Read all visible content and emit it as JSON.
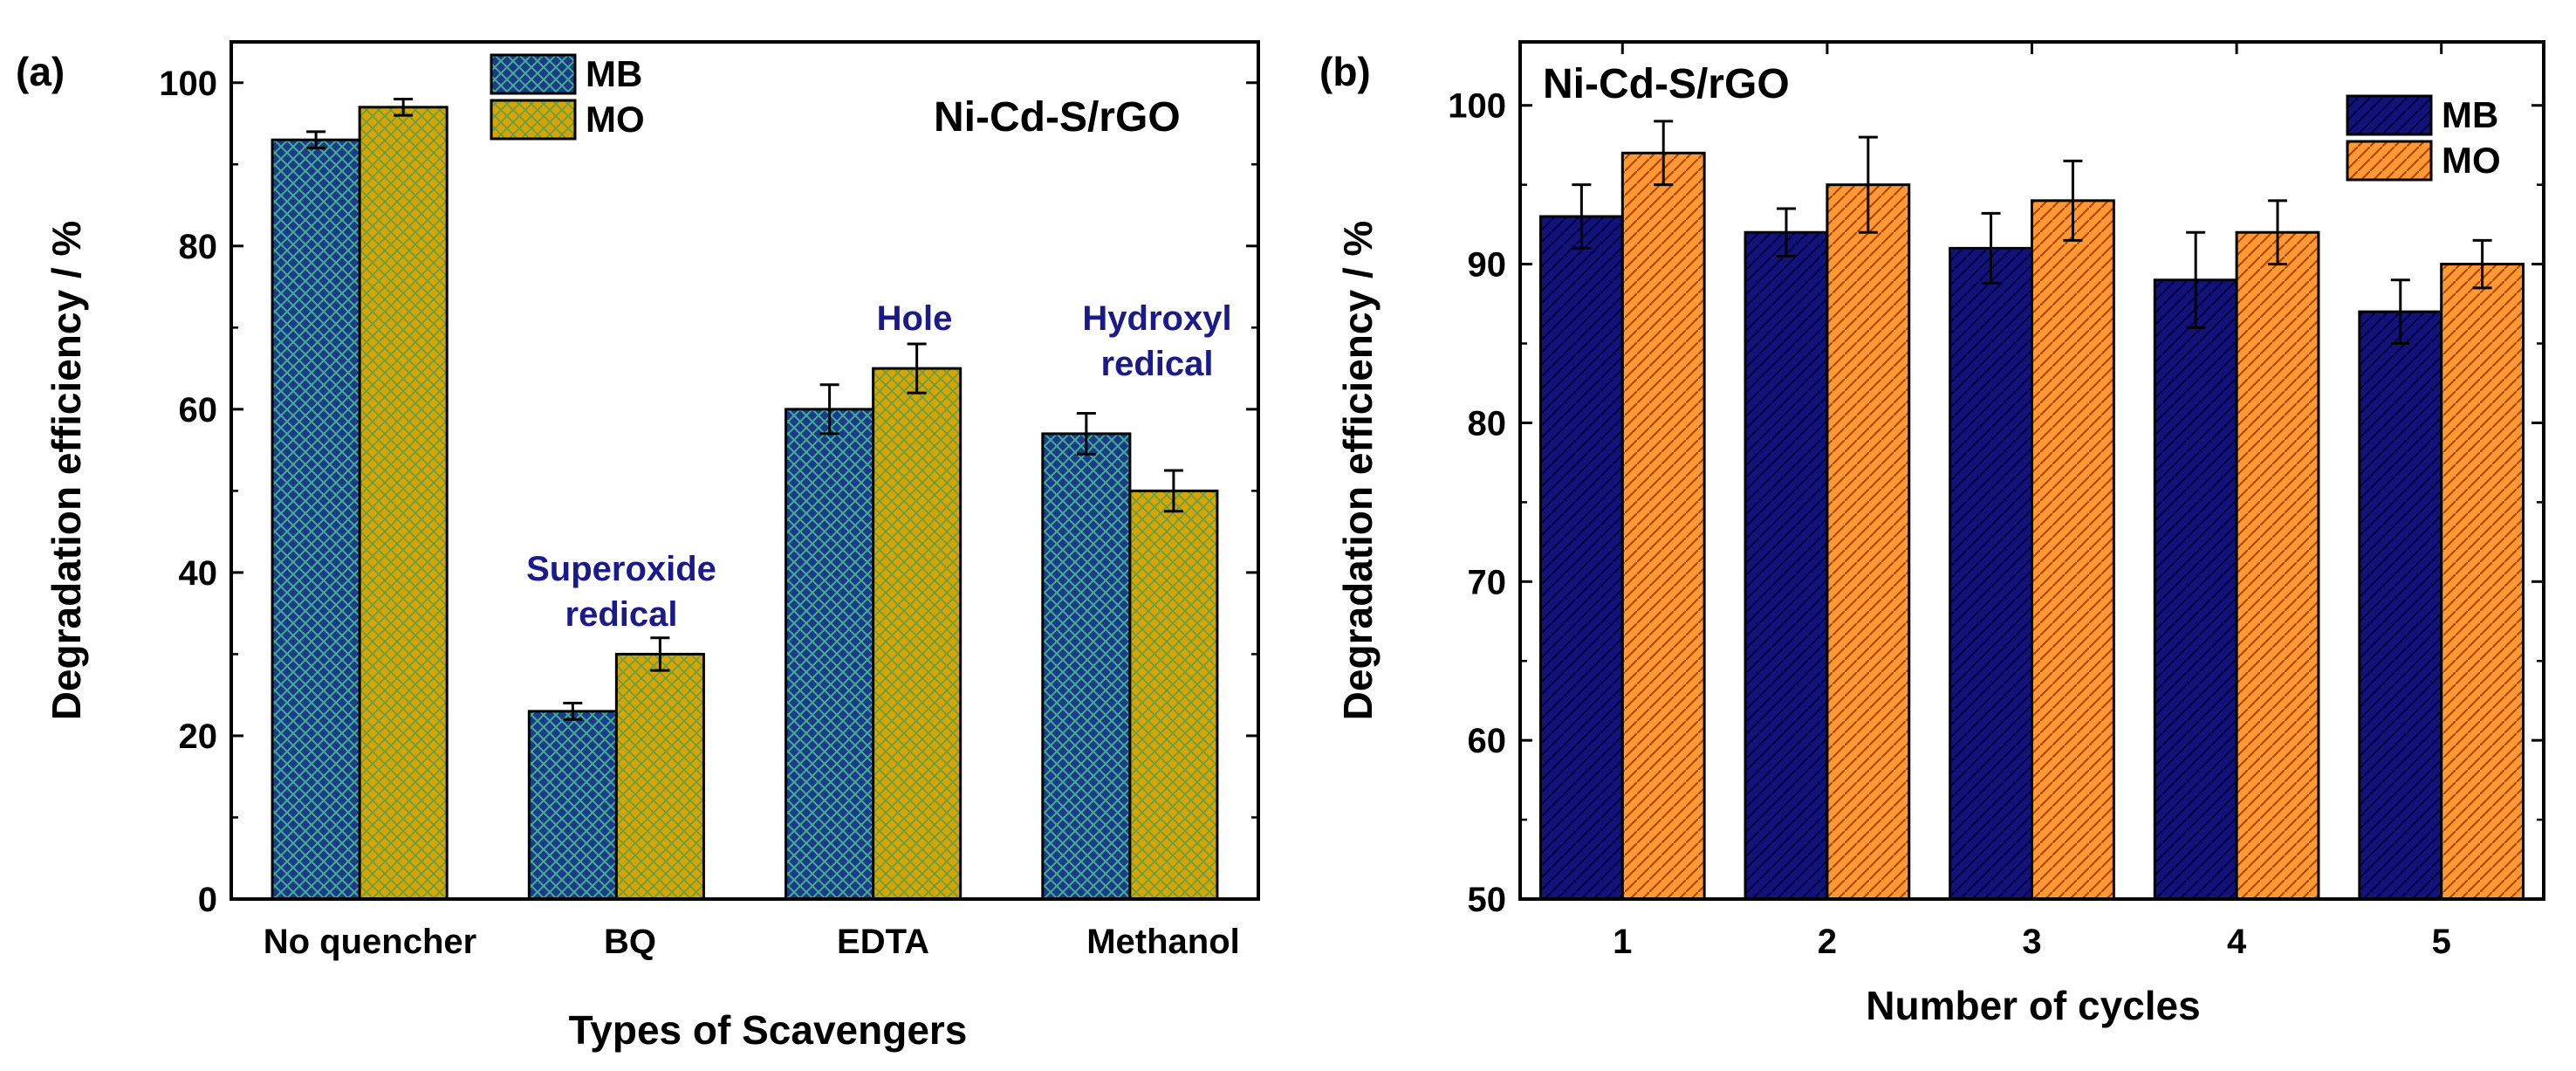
{
  "colors": {
    "mb_fill_a": "#1f3a8a",
    "mb_hatch_a": "#3fb08f",
    "mo_fill_a": "#d9a400",
    "mo_hatch_a": "#5aa050",
    "mb_fill_b": "#12137a",
    "mb_hatch_b": "#000040",
    "mo_fill_b": "#ff9933",
    "mo_hatch_b": "#b34700",
    "annotation": "#1a1a8c"
  },
  "chart_data": [
    {
      "panel": "(a)",
      "type": "bar",
      "title": "Ni-Cd-S/rGO",
      "xlabel": "Types of Scavengers",
      "ylabel": "Degradation efficiency / %",
      "ylim": [
        0,
        105
      ],
      "yticks": [
        "0",
        "20",
        "40",
        "60",
        "80",
        "100"
      ],
      "categories": [
        "No quencher",
        "BQ",
        "EDTA",
        "Methanol"
      ],
      "series": [
        {
          "name": "MB",
          "values": [
            93,
            23,
            60,
            57
          ],
          "errors": [
            1,
            1,
            3,
            2.5
          ]
        },
        {
          "name": "MO",
          "values": [
            97,
            30,
            65,
            50
          ],
          "errors": [
            1,
            2,
            3,
            2.5
          ]
        }
      ],
      "annotations": [
        {
          "lines": [
            "Superoxide",
            "redical"
          ],
          "category": "BQ"
        },
        {
          "lines": [
            "Hole"
          ],
          "category": "EDTA"
        },
        {
          "lines": [
            "Hydroxyl",
            "redical"
          ],
          "category": "Methanol"
        }
      ],
      "legend": "top-center"
    },
    {
      "panel": "(b)",
      "type": "bar",
      "title": "Ni-Cd-S/rGO",
      "xlabel": "Number of cycles",
      "ylabel": "Degradation efficiency / %",
      "ylim": [
        50,
        104
      ],
      "yticks": [
        "50",
        "60",
        "70",
        "80",
        "90",
        "100"
      ],
      "categories": [
        "1",
        "2",
        "3",
        "4",
        "5"
      ],
      "series": [
        {
          "name": "MB",
          "values": [
            93,
            92,
            91,
            89,
            87
          ],
          "errors": [
            2,
            1.5,
            2.2,
            3,
            2
          ]
        },
        {
          "name": "MO",
          "values": [
            97,
            95,
            94,
            92,
            90
          ],
          "errors": [
            2,
            3,
            2.5,
            2,
            1.5
          ]
        }
      ],
      "legend": "top-right"
    }
  ]
}
